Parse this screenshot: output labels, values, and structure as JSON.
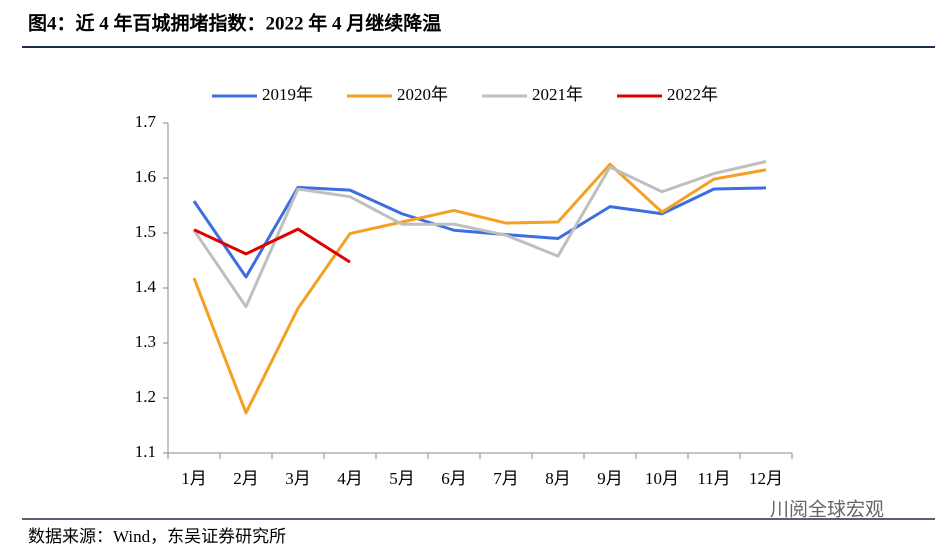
{
  "chart_data": {
    "type": "line",
    "title": "图4：近 4 年百城拥堵指数：2022 年 4 月继续降温",
    "source": "数据来源：Wind，东吴证券研究所",
    "watermark": "川阅全球宏观",
    "categories": [
      "1月",
      "2月",
      "3月",
      "4月",
      "5月",
      "6月",
      "7月",
      "8月",
      "9月",
      "10月",
      "11月",
      "12月"
    ],
    "series": [
      {
        "name": "2019年",
        "color": "#3c6ee0",
        "values": [
          1.558,
          1.42,
          1.583,
          1.578,
          1.535,
          1.505,
          1.497,
          1.49,
          1.548,
          1.535,
          1.58,
          1.582
        ]
      },
      {
        "name": "2020年",
        "color": "#f5a023",
        "values": [
          1.418,
          1.173,
          1.363,
          1.499,
          1.52,
          1.541,
          1.518,
          1.52,
          1.625,
          1.538,
          1.598,
          1.615
        ]
      },
      {
        "name": "2021年",
        "color": "#bfbfbf",
        "values": [
          1.505,
          1.366,
          1.58,
          1.566,
          1.516,
          1.516,
          1.496,
          1.458,
          1.62,
          1.575,
          1.608,
          1.63
        ]
      },
      {
        "name": "2022年",
        "color": "#e00000",
        "values": [
          1.506,
          1.462,
          1.507,
          1.447,
          null,
          null,
          null,
          null,
          null,
          null,
          null,
          null
        ]
      }
    ],
    "ylim": [
      1.1,
      1.7
    ],
    "yticks": [
      1.1,
      1.2,
      1.3,
      1.4,
      1.5,
      1.6,
      1.7
    ],
    "grid": false,
    "legend": "top"
  }
}
